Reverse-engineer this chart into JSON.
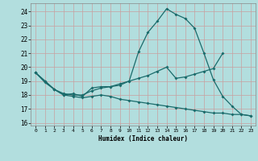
{
  "xlabel": "Humidex (Indice chaleur)",
  "background_color": "#b2dede",
  "grid_color": "#c8a0a0",
  "line_color": "#1a6b6b",
  "xlim": [
    -0.5,
    23.5
  ],
  "ylim": [
    15.8,
    24.6
  ],
  "yticks": [
    16,
    17,
    18,
    19,
    20,
    21,
    22,
    23,
    24
  ],
  "xticks": [
    0,
    1,
    2,
    3,
    4,
    5,
    6,
    7,
    8,
    9,
    10,
    11,
    12,
    13,
    14,
    15,
    16,
    17,
    18,
    19,
    20,
    21,
    22,
    23
  ],
  "curve1_x": [
    0,
    1,
    2,
    3,
    4,
    5,
    6,
    7,
    8,
    9,
    10,
    11,
    12,
    13,
    14,
    15,
    16,
    17,
    18,
    19,
    20,
    21,
    22,
    23
  ],
  "curve1_y": [
    19.6,
    19.0,
    18.4,
    18.0,
    18.1,
    17.9,
    18.5,
    18.6,
    18.6,
    18.7,
    19.0,
    21.1,
    22.5,
    23.3,
    24.2,
    23.8,
    23.5,
    22.8,
    21.0,
    19.1,
    17.9,
    17.2,
    16.6,
    16.5
  ],
  "curve2_x": [
    0,
    1,
    2,
    3,
    4,
    5,
    6,
    7,
    8,
    9,
    10,
    11,
    12,
    13,
    14,
    15,
    16,
    17,
    18,
    19,
    20,
    21,
    22,
    23
  ],
  "curve2_y": [
    19.6,
    19.0,
    18.4,
    18.1,
    18.0,
    18.0,
    18.3,
    18.5,
    18.6,
    18.8,
    19.0,
    19.2,
    19.4,
    19.7,
    20.0,
    19.2,
    19.3,
    19.5,
    19.7,
    19.9,
    21.0,
    null,
    null,
    null
  ],
  "curve3_x": [
    0,
    1,
    2,
    3,
    4,
    5,
    6,
    7,
    8,
    9,
    10,
    11,
    12,
    13,
    14,
    15,
    16,
    17,
    18,
    19,
    20,
    21,
    22,
    23
  ],
  "curve3_y": [
    19.6,
    18.9,
    18.4,
    18.0,
    17.9,
    17.8,
    17.9,
    18.0,
    17.9,
    17.7,
    17.6,
    17.5,
    17.4,
    17.3,
    17.2,
    17.1,
    17.0,
    16.9,
    16.8,
    16.7,
    16.7,
    16.6,
    16.6,
    16.5
  ]
}
